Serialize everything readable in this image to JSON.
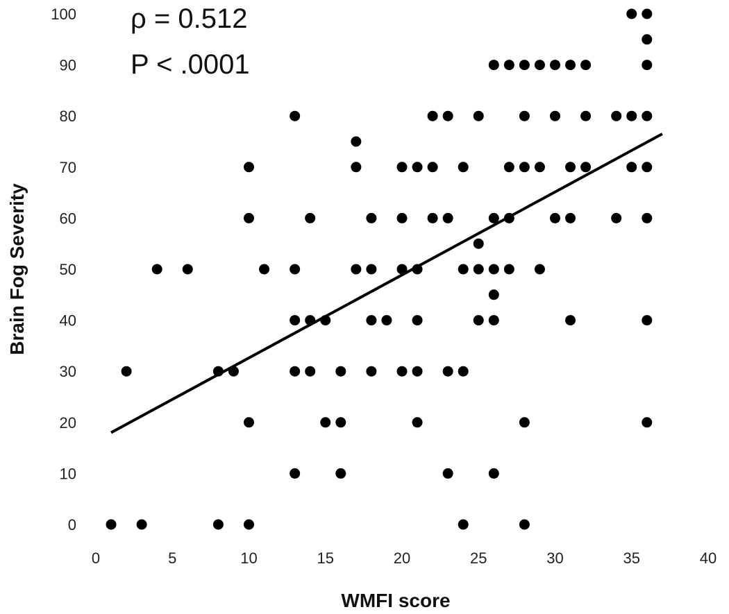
{
  "chart_data": {
    "type": "scatter",
    "title": "",
    "xlabel": "WMFI score",
    "ylabel": "Brain Fog Severity",
    "xlim": [
      0,
      40
    ],
    "ylim": [
      0,
      100
    ],
    "xticks": [
      0,
      5,
      10,
      15,
      20,
      25,
      30,
      35,
      40
    ],
    "yticks": [
      0,
      10,
      20,
      30,
      40,
      50,
      60,
      70,
      80,
      90,
      100
    ],
    "grid": false,
    "legend": "none",
    "annotations": [
      "ρ = 0.512",
      "P < .0001"
    ],
    "marker_color": "#000000",
    "trendline": {
      "x": [
        1,
        37
      ],
      "y": [
        18,
        76.5
      ]
    },
    "points": [
      [
        1,
        0
      ],
      [
        3,
        0
      ],
      [
        8,
        0
      ],
      [
        10,
        0
      ],
      [
        24,
        0
      ],
      [
        28,
        0
      ],
      [
        13,
        10
      ],
      [
        16,
        10
      ],
      [
        23,
        10
      ],
      [
        26,
        10
      ],
      [
        10,
        20
      ],
      [
        15,
        20
      ],
      [
        16,
        20
      ],
      [
        21,
        20
      ],
      [
        28,
        20
      ],
      [
        36,
        20
      ],
      [
        2,
        30
      ],
      [
        8,
        30
      ],
      [
        9,
        30
      ],
      [
        13,
        30
      ],
      [
        14,
        30
      ],
      [
        16,
        30
      ],
      [
        18,
        30
      ],
      [
        20,
        30
      ],
      [
        21,
        30
      ],
      [
        23,
        30
      ],
      [
        24,
        30
      ],
      [
        13,
        40
      ],
      [
        14,
        40
      ],
      [
        15,
        40
      ],
      [
        18,
        40
      ],
      [
        19,
        40
      ],
      [
        21,
        40
      ],
      [
        25,
        40
      ],
      [
        26,
        40
      ],
      [
        31,
        40
      ],
      [
        36,
        40
      ],
      [
        26,
        45
      ],
      [
        4,
        50
      ],
      [
        6,
        50
      ],
      [
        11,
        50
      ],
      [
        13,
        50
      ],
      [
        17,
        50
      ],
      [
        18,
        50
      ],
      [
        20,
        50
      ],
      [
        21,
        50
      ],
      [
        24,
        50
      ],
      [
        25,
        50
      ],
      [
        26,
        50
      ],
      [
        27,
        50
      ],
      [
        29,
        50
      ],
      [
        25,
        55
      ],
      [
        10,
        60
      ],
      [
        14,
        60
      ],
      [
        18,
        60
      ],
      [
        20,
        60
      ],
      [
        22,
        60
      ],
      [
        23,
        60
      ],
      [
        26,
        60
      ],
      [
        27,
        60
      ],
      [
        30,
        60
      ],
      [
        31,
        60
      ],
      [
        34,
        60
      ],
      [
        36,
        60
      ],
      [
        10,
        70
      ],
      [
        17,
        70
      ],
      [
        20,
        70
      ],
      [
        21,
        70
      ],
      [
        22,
        70
      ],
      [
        24,
        70
      ],
      [
        27,
        70
      ],
      [
        28,
        70
      ],
      [
        29,
        70
      ],
      [
        31,
        70
      ],
      [
        32,
        70
      ],
      [
        35,
        70
      ],
      [
        36,
        70
      ],
      [
        17,
        75
      ],
      [
        13,
        80
      ],
      [
        22,
        80
      ],
      [
        23,
        80
      ],
      [
        25,
        80
      ],
      [
        28,
        80
      ],
      [
        30,
        80
      ],
      [
        32,
        80
      ],
      [
        34,
        80
      ],
      [
        35,
        80
      ],
      [
        36,
        80
      ],
      [
        26,
        90
      ],
      [
        27,
        90
      ],
      [
        28,
        90
      ],
      [
        29,
        90
      ],
      [
        30,
        90
      ],
      [
        31,
        90
      ],
      [
        32,
        90
      ],
      [
        36,
        90
      ],
      [
        36,
        95
      ],
      [
        35,
        100
      ],
      [
        36,
        100
      ]
    ]
  }
}
